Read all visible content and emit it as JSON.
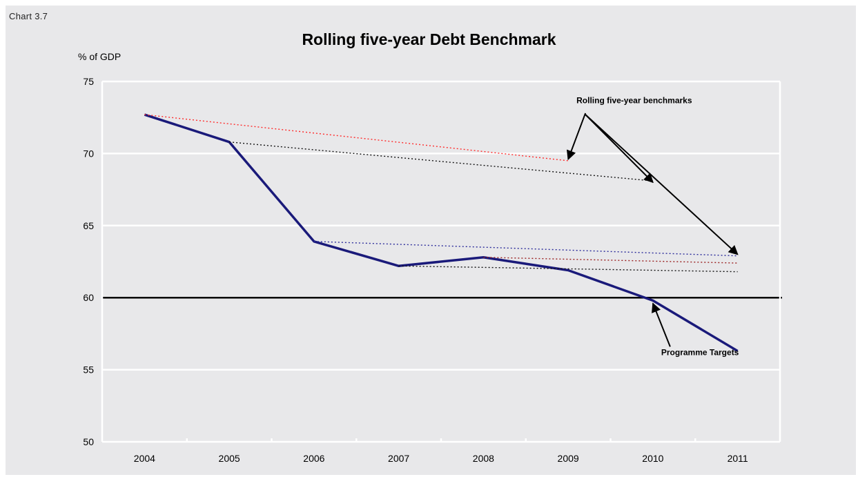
{
  "chart_data": {
    "type": "line",
    "label": "Chart 3.7",
    "title": "Rolling five-year Debt Benchmark",
    "ylabel": "% of GDP",
    "xlabel": "",
    "x": [
      "2004",
      "2005",
      "2006",
      "2007",
      "2008",
      "2009",
      "2010",
      "2011"
    ],
    "ylim": [
      50,
      75
    ],
    "yticks": [
      50,
      55,
      60,
      65,
      70,
      75
    ],
    "grid": true,
    "reference_line": {
      "value": 60,
      "color": "#000000"
    },
    "series": [
      {
        "key": "programme",
        "values": [
          72.7,
          70.8,
          63.9,
          62.2,
          62.8,
          61.9,
          59.8,
          56.3
        ],
        "color": "#1a1a7a",
        "style": "solid"
      },
      {
        "key": "bench_2004",
        "points": [
          [
            "2004",
            72.7
          ],
          [
            "2009",
            69.5
          ]
        ],
        "color": "#ff2a2a",
        "style": "dotted"
      },
      {
        "key": "bench_2005",
        "points": [
          [
            "2005",
            70.8
          ],
          [
            "2010",
            68.1
          ]
        ],
        "color": "#111111",
        "style": "dotted"
      },
      {
        "key": "bench_2006",
        "points": [
          [
            "2006",
            63.9
          ],
          [
            "2011",
            62.9
          ]
        ],
        "color": "#2a2a9a",
        "style": "dotted"
      },
      {
        "key": "bench_2008",
        "points": [
          [
            "2008",
            62.8
          ],
          [
            "2011",
            62.4
          ]
        ],
        "color": "#9a2020",
        "style": "dotted"
      },
      {
        "key": "bench_2007",
        "points": [
          [
            "2007",
            62.2
          ],
          [
            "2011",
            61.8
          ]
        ],
        "color": "#111111",
        "style": "dotted"
      }
    ],
    "annotations": [
      {
        "text": "Rolling five-year benchmarks",
        "anchor": [
          "2009",
          73.5
        ],
        "arrows": [
          {
            "from": [
              "2009",
              72.8
            ],
            "to": [
              "2009",
              69.6
            ]
          },
          {
            "from": [
              "2009",
              72.7
            ],
            "to": [
              "2010",
              68.0
            ]
          },
          {
            "from": [
              "2009",
              72.7
            ],
            "to": [
              "2011",
              63.0
            ]
          }
        ]
      },
      {
        "text": "Programme Targets",
        "anchor": [
          "2010",
          56.0
        ],
        "arrows": [
          {
            "from": [
              "2010",
              56.6
            ],
            "to": [
              "2010",
              59.6
            ]
          }
        ]
      }
    ]
  }
}
